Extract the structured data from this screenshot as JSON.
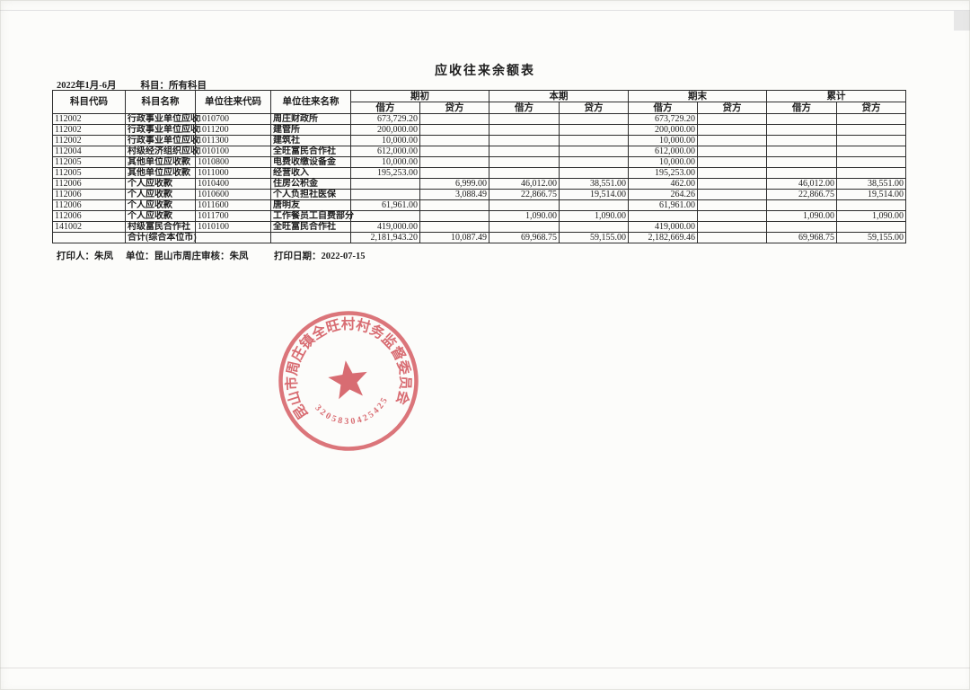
{
  "page": {
    "title": "应收往来余额表",
    "period": "2022年1月-6月",
    "subject_filter": "科目：所有科目"
  },
  "table": {
    "headers": {
      "code": "科目代码",
      "name": "科目名称",
      "unit_code": "单位往来代码",
      "unit_name": "单位往来名称",
      "groups": [
        "期初",
        "本期",
        "期末",
        "累计"
      ],
      "debit": "借方",
      "credit": "贷方"
    },
    "rows": [
      {
        "code": "112002",
        "name": "行政事业单位应收",
        "unit_code": "1010700",
        "unit_name": "周庄财政所",
        "amounts": [
          "673,729.20",
          "",
          "",
          "",
          "673,729.20",
          "",
          "",
          ""
        ]
      },
      {
        "code": "112002",
        "name": "行政事业单位应收",
        "unit_code": "1011200",
        "unit_name": "建管所",
        "amounts": [
          "200,000.00",
          "",
          "",
          "",
          "200,000.00",
          "",
          "",
          ""
        ]
      },
      {
        "code": "112002",
        "name": "行政事业单位应收",
        "unit_code": "1011300",
        "unit_name": "建筑社",
        "amounts": [
          "10,000.00",
          "",
          "",
          "",
          "10,000.00",
          "",
          "",
          ""
        ]
      },
      {
        "code": "112004",
        "name": "村级经济组织应收",
        "unit_code": "1010100",
        "unit_name": "全旺富民合作社",
        "amounts": [
          "612,000.00",
          "",
          "",
          "",
          "612,000.00",
          "",
          "",
          ""
        ]
      },
      {
        "code": "112005",
        "name": "其他单位应收款",
        "unit_code": "1010800",
        "unit_name": "电费收缴设备金",
        "amounts": [
          "10,000.00",
          "",
          "",
          "",
          "10,000.00",
          "",
          "",
          ""
        ]
      },
      {
        "code": "112005",
        "name": "其他单位应收款",
        "unit_code": "1011000",
        "unit_name": "经营收入",
        "amounts": [
          "195,253.00",
          "",
          "",
          "",
          "195,253.00",
          "",
          "",
          ""
        ]
      },
      {
        "code": "112006",
        "name": "个人应收款",
        "unit_code": "1010400",
        "unit_name": "住房公积金",
        "amounts": [
          "",
          "6,999.00",
          "46,012.00",
          "38,551.00",
          "462.00",
          "",
          "46,012.00",
          "38,551.00"
        ]
      },
      {
        "code": "112006",
        "name": "个人应收款",
        "unit_code": "1010600",
        "unit_name": "个人负担社医保",
        "amounts": [
          "",
          "3,088.49",
          "22,866.75",
          "19,514.00",
          "264.26",
          "",
          "22,866.75",
          "19,514.00"
        ]
      },
      {
        "code": "112006",
        "name": "个人应收款",
        "unit_code": "1011600",
        "unit_name": "唐明友",
        "amounts": [
          "61,961.00",
          "",
          "",
          "",
          "61,961.00",
          "",
          "",
          ""
        ]
      },
      {
        "code": "112006",
        "name": "个人应收款",
        "unit_code": "1011700",
        "unit_name": "工作餐员工自费部分",
        "amounts": [
          "",
          "",
          "1,090.00",
          "1,090.00",
          "",
          "",
          "1,090.00",
          "1,090.00"
        ]
      },
      {
        "code": "141002",
        "name": "村级富民合作社",
        "unit_code": "1010100",
        "unit_name": "全旺富民合作社",
        "amounts": [
          "419,000.00",
          "",
          "",
          "",
          "419,000.00",
          "",
          "",
          ""
        ]
      },
      {
        "code": "",
        "name": "合计(综合本位币)",
        "unit_code": "",
        "unit_name": "",
        "amounts": [
          "2,181,943.20",
          "10,087.49",
          "69,968.75",
          "59,155.00",
          "2,182,669.46",
          "",
          "69,968.75",
          "59,155.00"
        ],
        "is_total": true
      }
    ]
  },
  "footer": {
    "printed_by": "打印人：朱凤",
    "unit_auditor": "单位：昆山市周庄审核：朱凤",
    "print_date": "打印日期：2022-07-15"
  },
  "seal": {
    "ring_text": "昆山市周庄镇全旺村村务监督委员会",
    "serial_number": "3205830425425",
    "color": "#d2474f"
  }
}
